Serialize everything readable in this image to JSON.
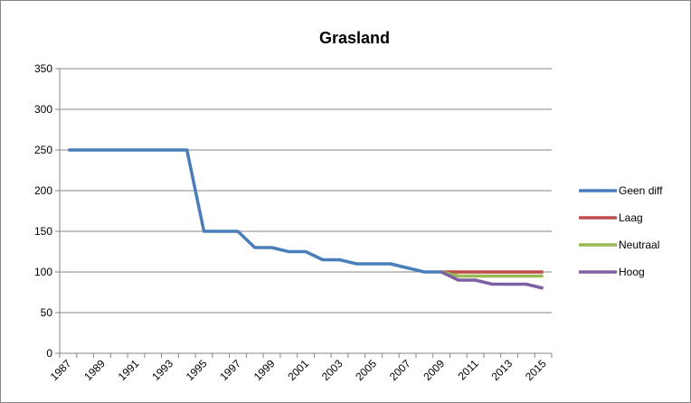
{
  "chart_data": {
    "type": "line",
    "title": "Grasland",
    "categories": [
      "1987",
      null,
      "1989",
      null,
      "1991",
      null,
      "1993",
      null,
      "1995",
      null,
      "1997",
      null,
      "1999",
      null,
      "2001",
      null,
      "2003",
      null,
      "2005",
      null,
      "2007",
      null,
      "2009",
      null,
      "2011",
      null,
      "2013",
      null,
      "2015"
    ],
    "series": [
      {
        "name": "Geen diff",
        "color": "#4a7ebb",
        "values": [
          250,
          250,
          250,
          250,
          250,
          250,
          250,
          250,
          150,
          150,
          150,
          130,
          130,
          125,
          125,
          115,
          115,
          110,
          110,
          110,
          105,
          100,
          100,
          null,
          null,
          null,
          null,
          null,
          null
        ]
      },
      {
        "name": "Laag",
        "color": "#be4b48",
        "values": [
          null,
          null,
          null,
          null,
          null,
          null,
          null,
          null,
          null,
          null,
          null,
          null,
          null,
          null,
          null,
          null,
          null,
          null,
          null,
          null,
          null,
          null,
          100,
          100,
          100,
          100,
          100,
          100,
          100
        ]
      },
      {
        "name": "Neutraal",
        "color": "#98b954",
        "values": [
          null,
          null,
          null,
          null,
          null,
          null,
          null,
          null,
          null,
          null,
          null,
          null,
          null,
          null,
          null,
          null,
          null,
          null,
          null,
          null,
          null,
          null,
          100,
          95,
          95,
          95,
          95,
          95,
          95
        ]
      },
      {
        "name": "Hoog",
        "color": "#7d60a0",
        "values": [
          null,
          null,
          null,
          null,
          null,
          null,
          null,
          null,
          null,
          null,
          null,
          null,
          null,
          null,
          null,
          null,
          null,
          null,
          null,
          null,
          null,
          null,
          100,
          90,
          90,
          85,
          85,
          85,
          80
        ]
      }
    ],
    "ylim": [
      0,
      350
    ],
    "yticks": [
      0,
      50,
      100,
      150,
      200,
      250,
      300,
      350
    ],
    "grid": true,
    "legend": "right"
  }
}
